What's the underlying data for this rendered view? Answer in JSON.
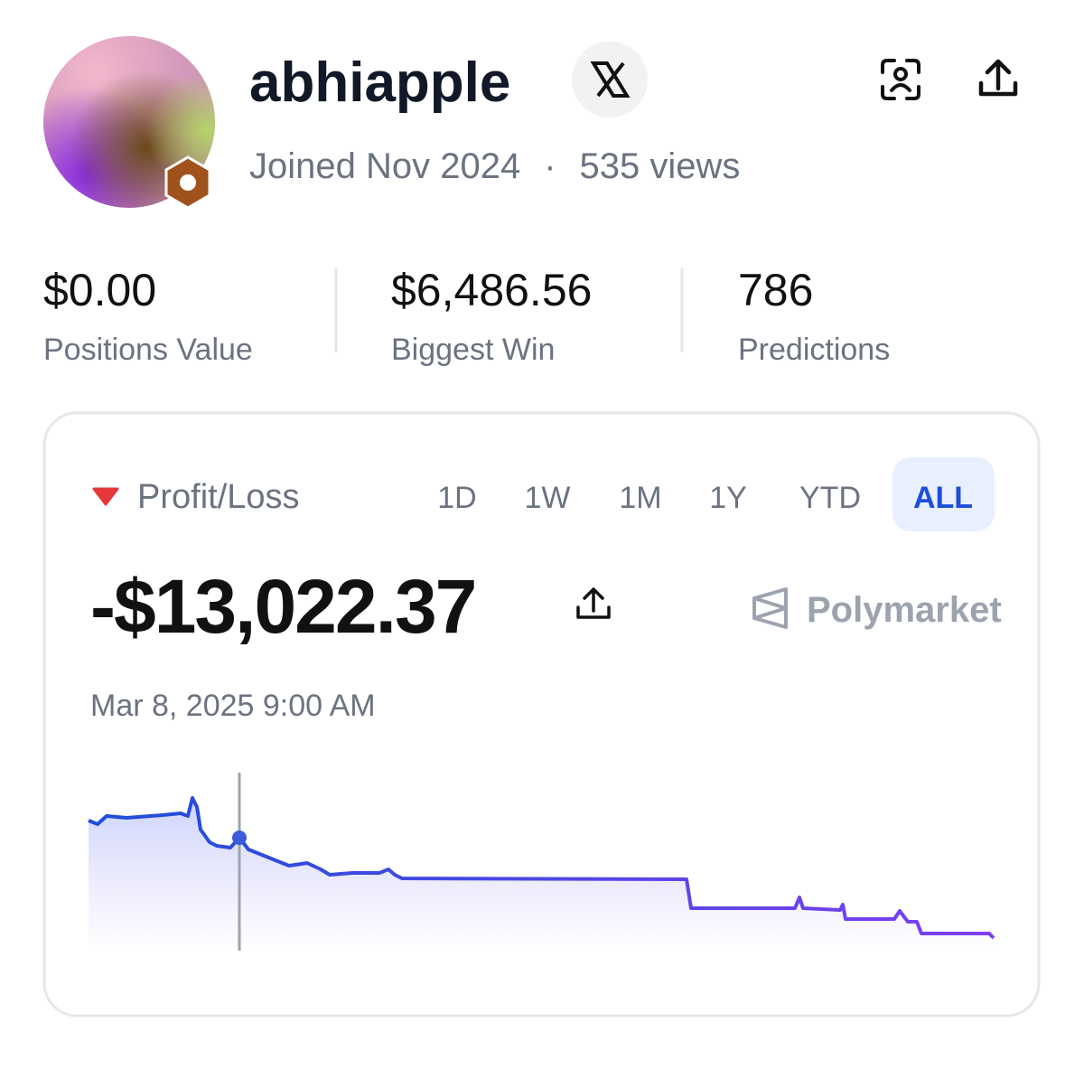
{
  "profile": {
    "username": "abhiapple",
    "joined": "Joined Nov 2024",
    "separator": "·",
    "views": "535 views"
  },
  "stats": [
    {
      "value": "$0.00",
      "label": "Positions Value"
    },
    {
      "value": "$6,486.56",
      "label": "Biggest Win"
    },
    {
      "value": "786",
      "label": "Predictions"
    }
  ],
  "pnl": {
    "title": "Profit/Loss",
    "ranges": [
      "1D",
      "1W",
      "1M",
      "1Y",
      "YTD",
      "ALL"
    ],
    "active": "ALL",
    "value": "-$13,022.37",
    "brand": "Polymarket",
    "timestamp": "Mar 8, 2025 9:00 AM"
  }
}
